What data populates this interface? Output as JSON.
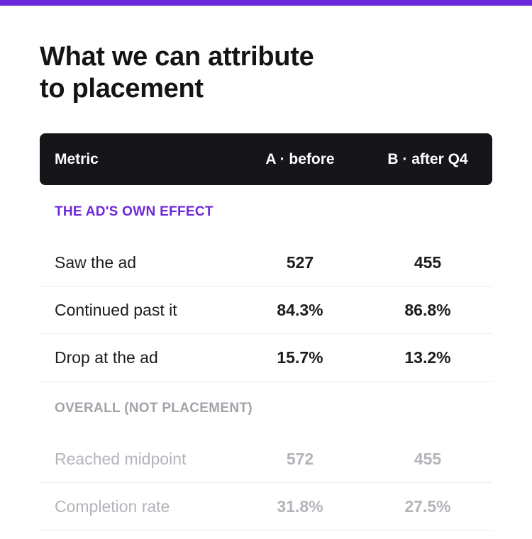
{
  "title_line1": "What we can attribute",
  "title_line2": "to placement",
  "header": {
    "metric": "Metric",
    "a": "A · before",
    "b": "B · after Q4"
  },
  "sections": [
    {
      "label": "THE AD'S OWN EFFECT",
      "rows": [
        {
          "metric": "Saw the ad",
          "a": "527",
          "b": "455"
        },
        {
          "metric": "Continued past it",
          "a": "84.3%",
          "b": "86.8%"
        },
        {
          "metric": "Drop at the ad",
          "a": "15.7%",
          "b": "13.2%"
        }
      ]
    },
    {
      "label": "OVERALL (NOT PLACEMENT)",
      "rows": [
        {
          "metric": "Reached midpoint",
          "a": "572",
          "b": "455"
        },
        {
          "metric": "Completion rate",
          "a": "31.8%",
          "b": "27.5%"
        }
      ]
    }
  ],
  "colors": {
    "accent": "#6d28d9",
    "header_bg": "#16161a",
    "muted_text": "#b4b4bb",
    "muted_label": "#a3a3ab"
  }
}
